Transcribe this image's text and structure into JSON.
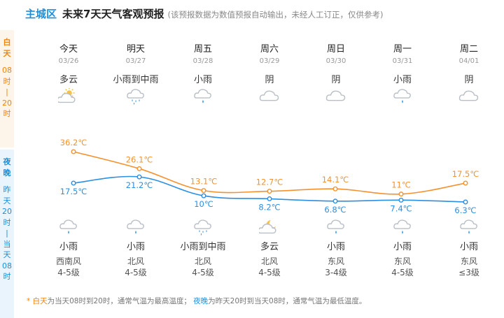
{
  "header": {
    "region": "主城区",
    "title": "未来7天天气客观预报",
    "note": "(该预报数据为数值预报自动输出，未经人工订正，仅供参考)"
  },
  "side": {
    "day_label": [
      "白",
      "天"
    ],
    "day_time": [
      "08",
      "时",
      "|",
      "20",
      "时"
    ],
    "night_label": [
      "夜",
      "晚"
    ],
    "night_time": [
      "昨",
      "天",
      "20",
      "时",
      "|",
      "当",
      "天",
      "08",
      "时"
    ]
  },
  "days": [
    {
      "day": "今天",
      "date": "03/26",
      "weather_day": "多云",
      "icon_day": "cloudy-sun-icon",
      "weather_night": "小雨",
      "icon_night": "rain-icon",
      "wind_dir": "西南风",
      "wind_level": "4-5级",
      "high_label": "36.2℃",
      "low_label": "17.5℃"
    },
    {
      "day": "明天",
      "date": "03/27",
      "weather_day": "小雨到中雨",
      "icon_day": "moderate-rain-icon",
      "weather_night": "小雨",
      "icon_night": "rain-icon",
      "wind_dir": "北风",
      "wind_level": "4-5级",
      "high_label": "26.1℃",
      "low_label": "21.2℃"
    },
    {
      "day": "周五",
      "date": "03/28",
      "weather_day": "小雨",
      "icon_day": "rain-icon",
      "weather_night": "小雨到中雨",
      "icon_night": "moderate-rain-icon",
      "wind_dir": "北风",
      "wind_level": "4-5级",
      "high_label": "13.1℃",
      "low_label": "10℃"
    },
    {
      "day": "周六",
      "date": "03/29",
      "weather_day": "阴",
      "icon_day": "overcast-icon",
      "weather_night": "多云",
      "icon_night": "cloudy-moon-icon",
      "wind_dir": "北风",
      "wind_level": "4-5级",
      "high_label": "12.7℃",
      "low_label": "8.2℃"
    },
    {
      "day": "周日",
      "date": "03/30",
      "weather_day": "阴",
      "icon_day": "overcast-icon",
      "weather_night": "小雨",
      "icon_night": "rain-icon",
      "wind_dir": "东风",
      "wind_level": "3-4级",
      "high_label": "14.1℃",
      "low_label": "6.8℃"
    },
    {
      "day": "周一",
      "date": "03/31",
      "weather_day": "小雨",
      "icon_day": "rain-icon",
      "weather_night": "小雨",
      "icon_night": "rain-icon",
      "wind_dir": "东风",
      "wind_level": "4-5级",
      "high_label": "11℃",
      "low_label": "7.4℃"
    },
    {
      "day": "周二",
      "date": "04/01",
      "weather_day": "阴",
      "icon_day": "overcast-icon",
      "weather_night": "小雨",
      "icon_night": "rain-icon",
      "wind_dir": "东风",
      "wind_level": "≤3级",
      "high_label": "17.5℃",
      "low_label": "6.3℃"
    }
  ],
  "chart_data": {
    "type": "line",
    "categories": [
      "03/26",
      "03/27",
      "03/28",
      "03/29",
      "03/30",
      "03/31",
      "04/01"
    ],
    "series": [
      {
        "values": [
          36.2,
          26.1,
          13.1,
          12.7,
          14.1,
          11,
          17.5
        ],
        "color": "#f5922f"
      },
      {
        "values": [
          17.5,
          21.2,
          10,
          8.2,
          6.8,
          7.4,
          6.3
        ],
        "color": "#2b8fe3"
      }
    ]
  },
  "footer": {
    "star": "* ",
    "day_term": "白天",
    "day_desc": "为当天08时到20时，通常气温为最高温度；",
    "night_term": "夜晚",
    "night_desc": "为昨天20时到当天08时，通常气温为最低温度。"
  },
  "colors": {
    "region": "#1a8fdc",
    "day_accent": "#f0830f",
    "night_accent": "#1a8fdc",
    "day_bg": "#fef5ea",
    "night_bg": "#eaf4fd"
  }
}
